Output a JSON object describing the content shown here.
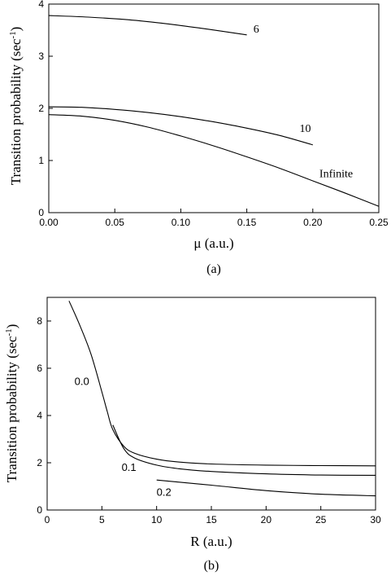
{
  "chart_data": [
    {
      "type": "line",
      "panel_label": "(a)",
      "xlabel": "μ (a.u.)",
      "ylabel": "Transition probability (sec",
      "ylabel_sup": "-1",
      "ylabel_close": ")",
      "xlim": [
        0,
        0.25
      ],
      "ylim": [
        0,
        4
      ],
      "x_ticks": [
        0.0,
        0.05,
        0.1,
        0.15,
        0.2,
        0.25
      ],
      "x_tick_labels": [
        "0.00",
        "0.05",
        "0.10",
        "0.15",
        "0.20",
        "0.25"
      ],
      "y_ticks": [
        0,
        1,
        2,
        3,
        4
      ],
      "y_tick_labels": [
        "0",
        "1",
        "2",
        "3",
        "4"
      ],
      "series": [
        {
          "name": "6",
          "x": [
            0,
            0.03,
            0.06,
            0.09,
            0.12,
            0.15
          ],
          "y": [
            3.78,
            3.75,
            3.7,
            3.62,
            3.52,
            3.41
          ]
        },
        {
          "name": "10",
          "x": [
            0,
            0.025,
            0.05,
            0.075,
            0.1,
            0.125,
            0.15,
            0.175,
            0.2
          ],
          "y": [
            2.03,
            2.02,
            1.98,
            1.92,
            1.84,
            1.74,
            1.62,
            1.48,
            1.3
          ]
        },
        {
          "name": "Infinite",
          "x": [
            0,
            0.025,
            0.05,
            0.075,
            0.1,
            0.125,
            0.15,
            0.175,
            0.2,
            0.225,
            0.25
          ],
          "y": [
            1.88,
            1.85,
            1.77,
            1.64,
            1.47,
            1.28,
            1.07,
            0.85,
            0.61,
            0.37,
            0.12
          ]
        }
      ],
      "annotations": [
        {
          "text": "6",
          "x": 0.155,
          "y": 3.45
        },
        {
          "text": "10",
          "x": 0.19,
          "y": 1.55
        },
        {
          "text": "Infinite",
          "x": 0.205,
          "y": 0.68
        }
      ]
    },
    {
      "type": "line",
      "panel_label": "(b)",
      "xlabel": "R (a.u.)",
      "ylabel": "Transition probability (sec",
      "ylabel_sup": "-1",
      "ylabel_close": ")",
      "xlim": [
        0,
        30
      ],
      "ylim": [
        0,
        9
      ],
      "x_ticks": [
        0,
        5,
        10,
        15,
        20,
        25,
        30
      ],
      "x_tick_labels": [
        "0",
        "5",
        "10",
        "15",
        "20",
        "25",
        "30"
      ],
      "y_ticks": [
        0,
        2,
        4,
        6,
        8
      ],
      "y_tick_labels": [
        "0",
        "2",
        "4",
        "6",
        "8"
      ],
      "series": [
        {
          "name": "0.0",
          "x": [
            2,
            3,
            4,
            5,
            5.5,
            6,
            7,
            8,
            10,
            12,
            15,
            20,
            25,
            30
          ],
          "y": [
            8.85,
            7.8,
            6.6,
            5.0,
            4.15,
            3.4,
            2.7,
            2.4,
            2.15,
            2.03,
            1.95,
            1.9,
            1.88,
            1.87
          ]
        },
        {
          "name": "0.1",
          "x": [
            6,
            7,
            8,
            10,
            12,
            15,
            20,
            25,
            30
          ],
          "y": [
            3.6,
            2.6,
            2.2,
            1.9,
            1.75,
            1.63,
            1.53,
            1.48,
            1.47
          ]
        },
        {
          "name": "0.2",
          "x": [
            10,
            15,
            20,
            25,
            30
          ],
          "y": [
            1.27,
            1.05,
            0.82,
            0.67,
            0.6
          ]
        }
      ],
      "annotations": [
        {
          "text": "0.0",
          "x": 2.5,
          "y": 5.3
        },
        {
          "text": "0.1",
          "x": 6.8,
          "y": 1.65
        },
        {
          "text": "0.2",
          "x": 10,
          "y": 0.6
        }
      ]
    }
  ]
}
